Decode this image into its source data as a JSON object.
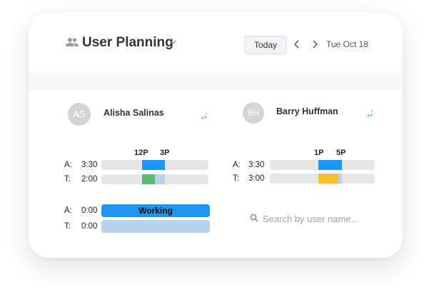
{
  "header": {
    "title": "User Planning",
    "today_label": "Today",
    "date": "Tue Oct 18",
    "icons": {
      "people": "people-icon",
      "caret": "chevron-down-icon",
      "prev": "chevron-left-icon",
      "next": "chevron-right-icon"
    }
  },
  "colors": {
    "actual": "#1f95f2",
    "tracked_green": "#5bb974",
    "tracked_yellow": "#fbc02d",
    "tracked_light": "#b7d3ec",
    "track_bg": "#e7e7e7"
  },
  "users": [
    {
      "initials": "AS",
      "name": "Alisha Salinas",
      "hours": [
        "12P",
        "3P"
      ],
      "actual": {
        "label": "A:",
        "value": "3:30"
      },
      "tracked": {
        "label": "T:",
        "value": "2:00"
      }
    },
    {
      "initials": "BH",
      "name": "Barry Huffman",
      "hours": [
        "1P",
        "5P"
      ],
      "actual": {
        "label": "A:",
        "value": "3:30"
      },
      "tracked": {
        "label": "T:",
        "value": "3:00"
      }
    }
  ],
  "current": {
    "actual": {
      "label": "A:",
      "value": "0:00"
    },
    "tracked": {
      "label": "T:",
      "value": "0:00"
    },
    "status": "Working"
  },
  "search": {
    "placeholder": "Search by user name..."
  }
}
